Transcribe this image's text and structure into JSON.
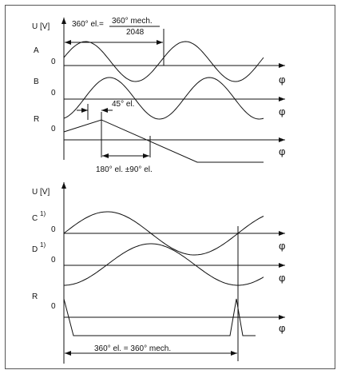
{
  "top": {
    "y_axis_label": "U [V]",
    "formula": {
      "left": "360° el.=",
      "numerator": "360° mech.",
      "denominator": "2048"
    },
    "channels": [
      {
        "label": "A",
        "zero": 0,
        "axis": "φ"
      },
      {
        "label": "B",
        "zero": 0,
        "axis": "φ"
      },
      {
        "label": "R",
        "zero": 0,
        "axis": "φ"
      }
    ],
    "phase_label": "45° el.",
    "reference_label": "180° el. ±90° el."
  },
  "bottom": {
    "y_axis_label": "U [V]",
    "channels": [
      {
        "label": "C",
        "note": "1)",
        "zero": 0,
        "axis": "φ"
      },
      {
        "label": "D",
        "note": "1)",
        "zero": 0,
        "axis": "φ"
      },
      {
        "label": "R",
        "zero": 0,
        "axis": "φ"
      }
    ],
    "period_label": "360° el. = 360° mech."
  }
}
